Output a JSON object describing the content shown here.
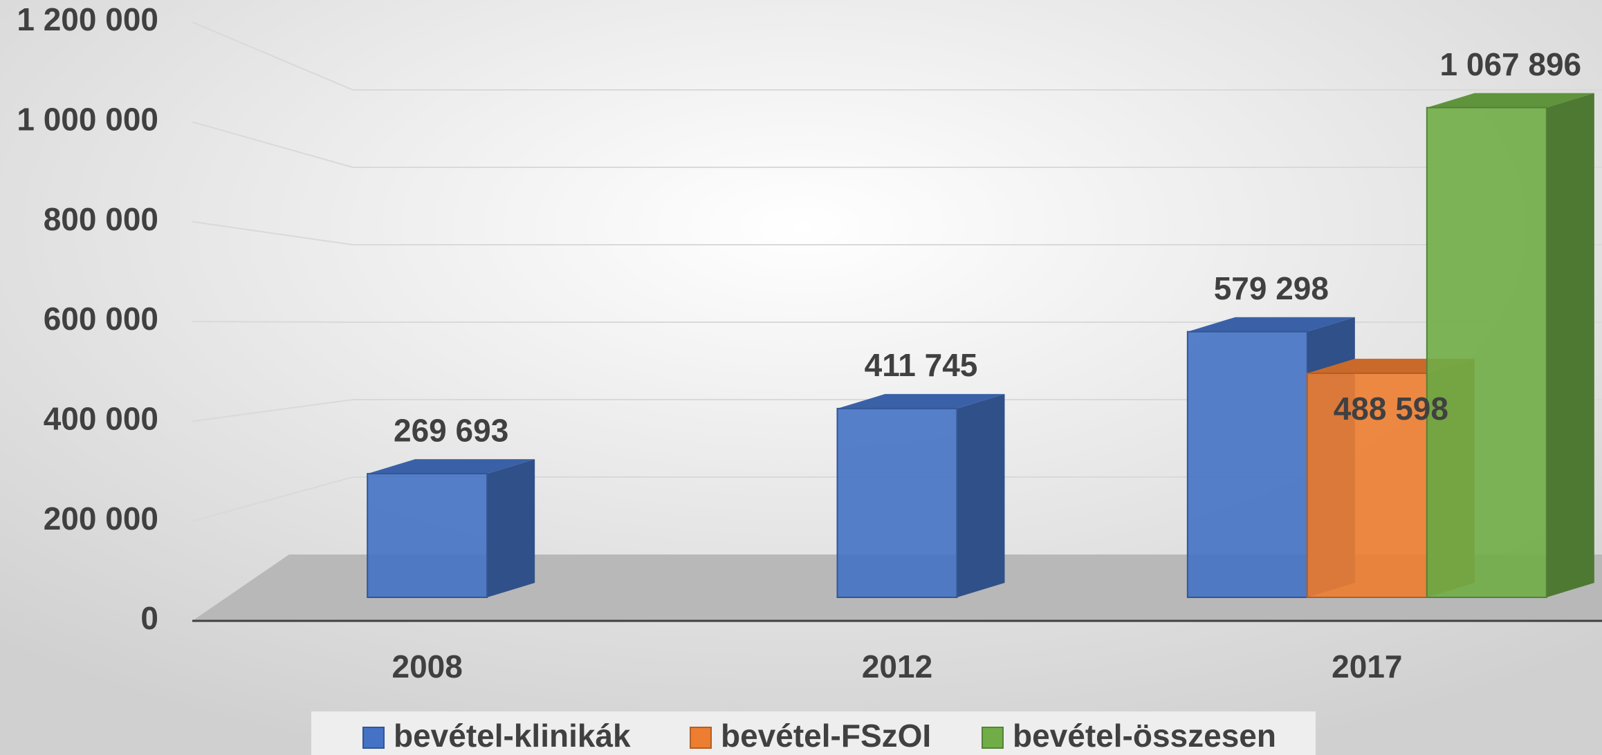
{
  "chart_data": {
    "type": "bar3d",
    "categories": [
      "2008",
      "2012",
      "2017"
    ],
    "series": [
      {
        "name": "bevétel-klinikák",
        "color": "#4472c4",
        "values": [
          269693,
          411745,
          579298
        ],
        "value_labels": [
          "269 693",
          "411 745",
          "579 298"
        ]
      },
      {
        "name": "bevétel-FSzOI",
        "color": "#ed7d31",
        "values": [
          null,
          null,
          488598
        ],
        "value_labels": [
          null,
          null,
          "488 598"
        ]
      },
      {
        "name": "bevétel-összesen",
        "color": "#70ad47",
        "values": [
          null,
          null,
          1067896
        ],
        "value_labels": [
          null,
          null,
          "1 067 896"
        ]
      }
    ],
    "ylim": [
      0,
      1200000
    ],
    "yticks": [
      {
        "value": 0,
        "label": "0"
      },
      {
        "value": 200000,
        "label": "200 000"
      },
      {
        "value": 400000,
        "label": "400 000"
      },
      {
        "value": 600000,
        "label": "600 000"
      },
      {
        "value": 800000,
        "label": "800 000"
      },
      {
        "value": 1000000,
        "label": "1 000 000"
      },
      {
        "value": 1200000,
        "label": "1 200 000"
      }
    ],
    "grid": true,
    "legend": "bottom"
  }
}
